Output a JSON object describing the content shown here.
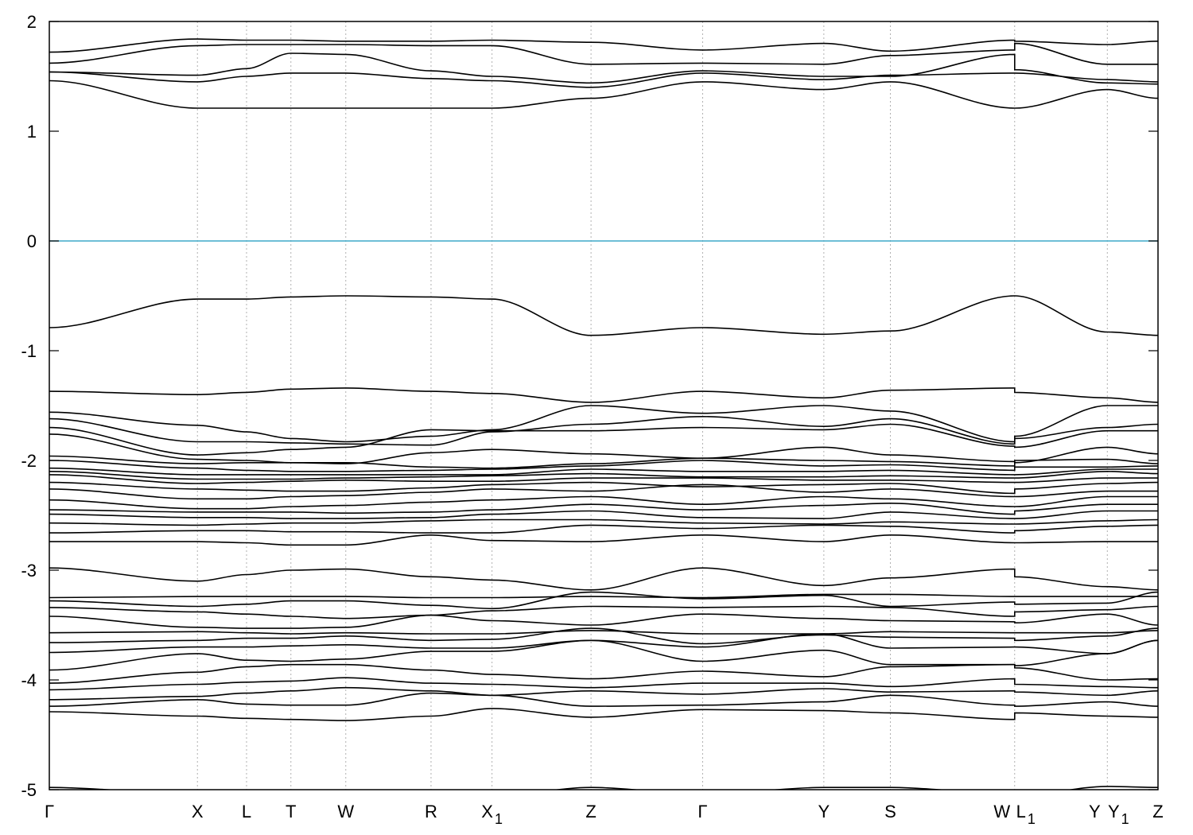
{
  "chart_data": {
    "type": "line",
    "title": "",
    "xlabel": "",
    "ylabel": "",
    "ylim": [
      -5,
      2
    ],
    "yticks": [
      2,
      1,
      0,
      -1,
      -2,
      -3,
      -4,
      -5
    ],
    "ytick_labels": [
      "2",
      "1",
      "0",
      "-1",
      "-2",
      "-3",
      "-4",
      "-5"
    ],
    "grid": "vertical dotted lines at high-symmetry points",
    "fermi_level": 0,
    "colors": {
      "bands": "#000000",
      "fermi_line": "#3fa9c9",
      "grid": "#b0b0b0"
    },
    "kpoints": [
      {
        "label": "Γ",
        "sub": "",
        "x": 0.0
      },
      {
        "label": "X",
        "sub": "",
        "x": 0.1336
      },
      {
        "label": "L",
        "sub": "",
        "x": 0.1779
      },
      {
        "label": "T",
        "sub": "",
        "x": 0.2179
      },
      {
        "label": "W",
        "sub": "",
        "x": 0.2674
      },
      {
        "label": "R",
        "sub": "",
        "x": 0.3443
      },
      {
        "label": "X",
        "sub": "1",
        "x": 0.3993
      },
      {
        "label": "Z",
        "sub": "",
        "x": 0.4886
      },
      {
        "label": "Γ",
        "sub": "",
        "x": 0.5893
      },
      {
        "label": "Y",
        "sub": "",
        "x": 0.6986
      },
      {
        "label": "S",
        "sub": "",
        "x": 0.7586
      },
      {
        "label": "W",
        "sub": "",
        "x": 0.8707
      },
      {
        "label": "L",
        "sub": "1",
        "x": 0.8707
      },
      {
        "label": "Y",
        "sub": "",
        "x": 0.9543
      },
      {
        "label": "Y",
        "sub": "1",
        "x": 0.9543
      },
      {
        "label": "Z",
        "sub": "",
        "x": 1.0
      }
    ],
    "node_x": [
      0.0,
      0.1336,
      0.1779,
      0.2179,
      0.2674,
      0.3443,
      0.3993,
      0.4886,
      0.5893,
      0.6986,
      0.7586,
      0.8707,
      0.8707,
      0.9543,
      1.0
    ],
    "series": [
      {
        "values": [
          1.46,
          1.21,
          1.21,
          1.21,
          1.21,
          1.21,
          1.21,
          1.3,
          1.45,
          1.38,
          1.45,
          1.21,
          1.21,
          1.38,
          1.3
        ]
      },
      {
        "values": [
          1.54,
          1.45,
          1.5,
          1.53,
          1.53,
          1.48,
          1.46,
          1.4,
          1.53,
          1.47,
          1.51,
          1.53,
          1.53,
          1.47,
          1.45
        ]
      },
      {
        "values": [
          1.54,
          1.51,
          1.57,
          1.71,
          1.7,
          1.55,
          1.5,
          1.44,
          1.55,
          1.5,
          1.5,
          1.7,
          1.56,
          1.44,
          1.43
        ]
      },
      {
        "values": [
          1.62,
          1.78,
          1.79,
          1.79,
          1.79,
          1.78,
          1.78,
          1.61,
          1.62,
          1.61,
          1.69,
          1.74,
          1.8,
          1.61,
          1.61
        ]
      },
      {
        "values": [
          1.72,
          1.84,
          1.83,
          1.83,
          1.82,
          1.82,
          1.83,
          1.81,
          1.74,
          1.8,
          1.73,
          1.83,
          1.82,
          1.79,
          1.82
        ]
      },
      {
        "values": [
          -0.79,
          -0.53,
          -0.53,
          -0.51,
          -0.5,
          -0.51,
          -0.53,
          -0.86,
          -0.79,
          -0.85,
          -0.82,
          -0.5,
          -0.5,
          -0.83,
          -0.86
        ]
      },
      {
        "values": [
          -1.37,
          -1.4,
          -1.38,
          -1.35,
          -1.34,
          -1.37,
          -1.39,
          -1.47,
          -1.37,
          -1.43,
          -1.36,
          -1.34,
          -1.38,
          -1.43,
          -1.47
        ]
      },
      {
        "values": [
          -1.56,
          -1.68,
          -1.74,
          -1.8,
          -1.83,
          -1.78,
          -1.72,
          -1.5,
          -1.57,
          -1.5,
          -1.55,
          -1.83,
          -1.78,
          -1.5,
          -1.5
        ]
      },
      {
        "values": [
          -1.62,
          -1.83,
          -1.83,
          -1.84,
          -1.85,
          -1.86,
          -1.74,
          -1.67,
          -1.6,
          -1.69,
          -1.62,
          -1.85,
          -1.8,
          -1.7,
          -1.67
        ]
      },
      {
        "values": [
          -1.7,
          -1.95,
          -1.93,
          -1.9,
          -1.88,
          -1.72,
          -1.73,
          -1.73,
          -1.7,
          -1.72,
          -1.67,
          -1.87,
          -1.88,
          -1.73,
          -1.73
        ]
      },
      {
        "values": [
          -1.76,
          -1.99,
          -2.0,
          -2.02,
          -2.03,
          -1.93,
          -1.9,
          -1.94,
          -1.98,
          -1.88,
          -1.95,
          -2.01,
          -2.02,
          -1.88,
          -1.94
        ]
      },
      {
        "values": [
          -1.96,
          -2.03,
          -2.02,
          -2.02,
          -2.02,
          -2.06,
          -2.07,
          -2.03,
          -1.98,
          -2.0,
          -2.01,
          -2.05,
          -2.0,
          -1.99,
          -2.03
        ]
      },
      {
        "values": [
          -2.0,
          -2.07,
          -2.09,
          -2.1,
          -2.1,
          -2.09,
          -2.08,
          -2.05,
          -2.0,
          -2.05,
          -2.04,
          -2.09,
          -2.06,
          -2.06,
          -2.05
        ]
      },
      {
        "values": [
          -2.07,
          -2.13,
          -2.13,
          -2.13,
          -2.13,
          -2.13,
          -2.13,
          -2.08,
          -2.1,
          -2.1,
          -2.09,
          -2.13,
          -2.13,
          -2.08,
          -2.08
        ]
      },
      {
        "values": [
          -2.1,
          -2.17,
          -2.17,
          -2.17,
          -2.16,
          -2.15,
          -2.14,
          -2.12,
          -2.15,
          -2.15,
          -2.14,
          -2.16,
          -2.16,
          -2.1,
          -2.12
        ]
      },
      {
        "values": [
          -2.13,
          -2.21,
          -2.2,
          -2.19,
          -2.18,
          -2.19,
          -2.19,
          -2.16,
          -2.16,
          -2.18,
          -2.18,
          -2.2,
          -2.2,
          -2.16,
          -2.16
        ]
      },
      {
        "values": [
          -2.2,
          -2.26,
          -2.27,
          -2.28,
          -2.28,
          -2.25,
          -2.22,
          -2.2,
          -2.24,
          -2.22,
          -2.21,
          -2.3,
          -2.26,
          -2.21,
          -2.2
        ]
      },
      {
        "values": [
          -2.26,
          -2.35,
          -2.35,
          -2.33,
          -2.32,
          -2.29,
          -2.26,
          -2.28,
          -2.22,
          -2.29,
          -2.26,
          -2.33,
          -2.33,
          -2.28,
          -2.28
        ]
      },
      {
        "values": [
          -2.36,
          -2.44,
          -2.44,
          -2.42,
          -2.41,
          -2.38,
          -2.36,
          -2.33,
          -2.4,
          -2.33,
          -2.35,
          -2.42,
          -2.42,
          -2.33,
          -2.33
        ]
      },
      {
        "values": [
          -2.45,
          -2.47,
          -2.47,
          -2.47,
          -2.48,
          -2.47,
          -2.45,
          -2.4,
          -2.45,
          -2.41,
          -2.39,
          -2.49,
          -2.46,
          -2.4,
          -2.4
        ]
      },
      {
        "values": [
          -2.49,
          -2.52,
          -2.52,
          -2.53,
          -2.53,
          -2.52,
          -2.49,
          -2.46,
          -2.52,
          -2.53,
          -2.47,
          -2.53,
          -2.53,
          -2.46,
          -2.46
        ]
      },
      {
        "values": [
          -2.57,
          -2.59,
          -2.58,
          -2.57,
          -2.57,
          -2.55,
          -2.54,
          -2.54,
          -2.57,
          -2.58,
          -2.56,
          -2.58,
          -2.58,
          -2.55,
          -2.54
        ]
      },
      {
        "values": [
          -2.66,
          -2.64,
          -2.64,
          -2.65,
          -2.65,
          -2.66,
          -2.66,
          -2.59,
          -2.62,
          -2.59,
          -2.6,
          -2.66,
          -2.64,
          -2.6,
          -2.59
        ]
      },
      {
        "values": [
          -2.74,
          -2.74,
          -2.75,
          -2.77,
          -2.77,
          -2.68,
          -2.73,
          -2.74,
          -2.68,
          -2.74,
          -2.68,
          -2.75,
          -2.75,
          -2.74,
          -2.74
        ]
      },
      {
        "values": [
          -2.98,
          -3.1,
          -3.04,
          -3.0,
          -2.99,
          -3.06,
          -3.09,
          -3.18,
          -2.98,
          -3.14,
          -3.07,
          -2.99,
          -3.06,
          -3.15,
          -3.18
        ]
      },
      {
        "values": [
          -3.25,
          -3.24,
          -3.24,
          -3.24,
          -3.24,
          -3.25,
          -3.25,
          -3.24,
          -3.25,
          -3.22,
          -3.22,
          -3.24,
          -3.24,
          -3.24,
          -3.24
        ]
      },
      {
        "values": [
          -3.28,
          -3.33,
          -3.31,
          -3.28,
          -3.28,
          -3.32,
          -3.35,
          -3.2,
          -3.26,
          -3.23,
          -3.33,
          -3.29,
          -3.31,
          -3.3,
          -3.2
        ]
      },
      {
        "values": [
          -3.34,
          -3.38,
          -3.4,
          -3.42,
          -3.44,
          -3.41,
          -3.37,
          -3.33,
          -3.34,
          -3.33,
          -3.34,
          -3.42,
          -3.38,
          -3.36,
          -3.33
        ]
      },
      {
        "values": [
          -3.42,
          -3.52,
          -3.53,
          -3.53,
          -3.52,
          -3.41,
          -3.46,
          -3.5,
          -3.4,
          -3.44,
          -3.46,
          -3.47,
          -3.48,
          -3.4,
          -3.5
        ]
      },
      {
        "values": [
          -3.57,
          -3.56,
          -3.57,
          -3.58,
          -3.57,
          -3.58,
          -3.58,
          -3.55,
          -3.58,
          -3.58,
          -3.56,
          -3.57,
          -3.57,
          -3.57,
          -3.55
        ]
      },
      {
        "values": [
          -3.66,
          -3.64,
          -3.62,
          -3.62,
          -3.6,
          -3.64,
          -3.63,
          -3.53,
          -3.67,
          -3.59,
          -3.61,
          -3.62,
          -3.64,
          -3.6,
          -3.53
        ]
      },
      {
        "values": [
          -3.75,
          -3.7,
          -3.7,
          -3.69,
          -3.68,
          -3.71,
          -3.71,
          -3.64,
          -3.7,
          -3.58,
          -3.71,
          -3.7,
          -3.7,
          -3.76,
          -3.64
        ]
      },
      {
        "values": [
          -3.91,
          -3.76,
          -3.82,
          -3.83,
          -3.81,
          -3.74,
          -3.74,
          -3.64,
          -3.83,
          -3.73,
          -3.86,
          -3.86,
          -3.87,
          -3.76,
          -3.64
        ]
      },
      {
        "values": [
          -4.03,
          -3.93,
          -3.88,
          -3.86,
          -3.86,
          -3.91,
          -3.95,
          -3.99,
          -3.92,
          -3.97,
          -3.88,
          -3.86,
          -3.89,
          -4.0,
          -3.99
        ]
      },
      {
        "values": [
          -4.09,
          -4.04,
          -4.02,
          -4.01,
          -3.98,
          -4.03,
          -4.04,
          -4.07,
          -4.03,
          -4.03,
          -4.06,
          -3.99,
          -4.04,
          -4.06,
          -4.07
        ]
      },
      {
        "values": [
          -4.18,
          -4.15,
          -4.12,
          -4.1,
          -4.07,
          -4.1,
          -4.14,
          -4.1,
          -4.13,
          -4.08,
          -4.11,
          -4.1,
          -4.11,
          -4.14,
          -4.1
        ]
      },
      {
        "values": [
          -4.24,
          -4.18,
          -4.22,
          -4.23,
          -4.23,
          -4.12,
          -4.14,
          -4.24,
          -4.23,
          -4.2,
          -4.14,
          -4.23,
          -4.24,
          -4.2,
          -4.24
        ]
      },
      {
        "values": [
          -4.29,
          -4.33,
          -4.35,
          -4.36,
          -4.37,
          -4.33,
          -4.26,
          -4.34,
          -4.27,
          -4.28,
          -4.3,
          -4.36,
          -4.3,
          -4.33,
          -4.34
        ]
      },
      {
        "values": [
          -4.98,
          -5.04,
          -5.05,
          -5.05,
          -5.05,
          -5.06,
          -5.06,
          -4.98,
          -5.04,
          -4.98,
          -4.98,
          -5.04,
          -5.06,
          -4.97,
          -4.98
        ]
      }
    ]
  }
}
